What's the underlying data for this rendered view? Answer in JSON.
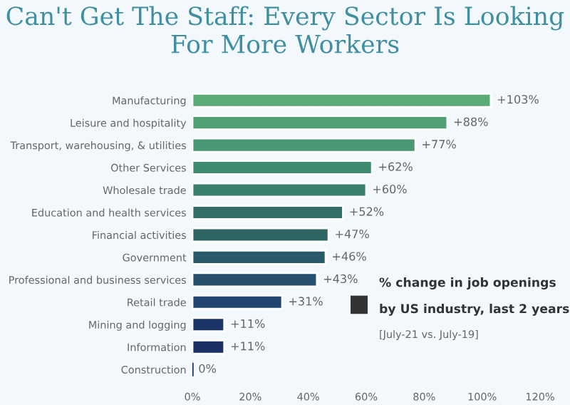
{
  "chart_data": {
    "type": "bar",
    "orientation": "horizontal",
    "title": "Can't Get The Staff: Every Sector Is Looking For More Workers",
    "categories": [
      "Manufacturing",
      "Leisure and hospitality",
      "Transport, warehousing, & utilities",
      "Other Services",
      "Wholesale trade",
      "Education and health services",
      "Financial activities",
      "Government",
      "Professional and business services",
      "Retail trade",
      "Mining and logging",
      "Information",
      "Construction"
    ],
    "values": [
      103,
      88,
      77,
      62,
      60,
      52,
      47,
      46,
      43,
      31,
      11,
      11,
      0
    ],
    "value_labels": [
      "+103%",
      "+88%",
      "+77%",
      "+62%",
      "+60%",
      "+52%",
      "+47%",
      "+46%",
      "+43%",
      "+31%",
      "+11%",
      "+11%",
      "0%"
    ],
    "colors": [
      "#5aab78",
      "#51a176",
      "#4a9873",
      "#3f8b70",
      "#3a806c",
      "#336f68",
      "#2e6563",
      "#2a5a6a",
      "#27506e",
      "#234670",
      "#1d3566",
      "#1b2f62",
      "#1a2b5e"
    ],
    "xlim": [
      0,
      120
    ],
    "xticks": [
      {
        "value": 0,
        "label": "0%"
      },
      {
        "value": 20,
        "label": "20%"
      },
      {
        "value": 40,
        "label": "40%"
      },
      {
        "value": 60,
        "label": "60%"
      },
      {
        "value": 80,
        "label": "80%"
      },
      {
        "value": 100,
        "label": "100%"
      },
      {
        "value": 120,
        "label": "120%"
      }
    ],
    "annotations": [
      "% change in job openings",
      "by US industry, last 2 years",
      "[July-21 vs. July-19]"
    ],
    "grid": false
  }
}
